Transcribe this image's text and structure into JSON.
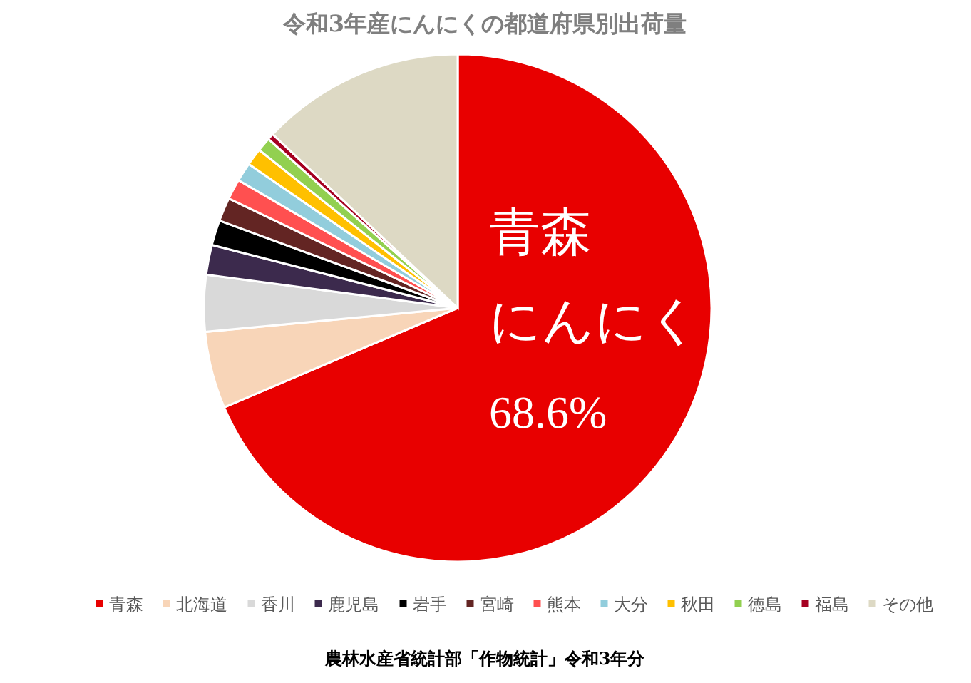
{
  "chart_data": {
    "type": "pie",
    "title": "令和3年産にんにくの都道府県別出荷量",
    "categories": [
      "青森",
      "北海道",
      "香川",
      "鹿児島",
      "岩手",
      "宮崎",
      "熊本",
      "大分",
      "秋田",
      "徳島",
      "福島",
      "その他"
    ],
    "values": [
      68.6,
      4.9,
      3.6,
      1.9,
      1.6,
      1.5,
      1.3,
      1.2,
      1.1,
      0.9,
      0.4,
      13.0
    ],
    "value_labels": [
      "68.6%",
      null,
      null,
      null,
      null,
      null,
      null,
      null,
      null,
      null,
      null,
      null
    ],
    "colors": [
      "#e80000",
      "#f8d5b8",
      "#d9d9d9",
      "#3c2a4d",
      "#000000",
      "#632523",
      "#ff5050",
      "#92cddc",
      "#ffc000",
      "#92d050",
      "#a50021",
      "#ddd9c4"
    ],
    "legend": "bottom",
    "annotations": [
      "青森",
      "にんにく",
      "農林水産省統計部「作物統計」令和3年分"
    ]
  }
}
